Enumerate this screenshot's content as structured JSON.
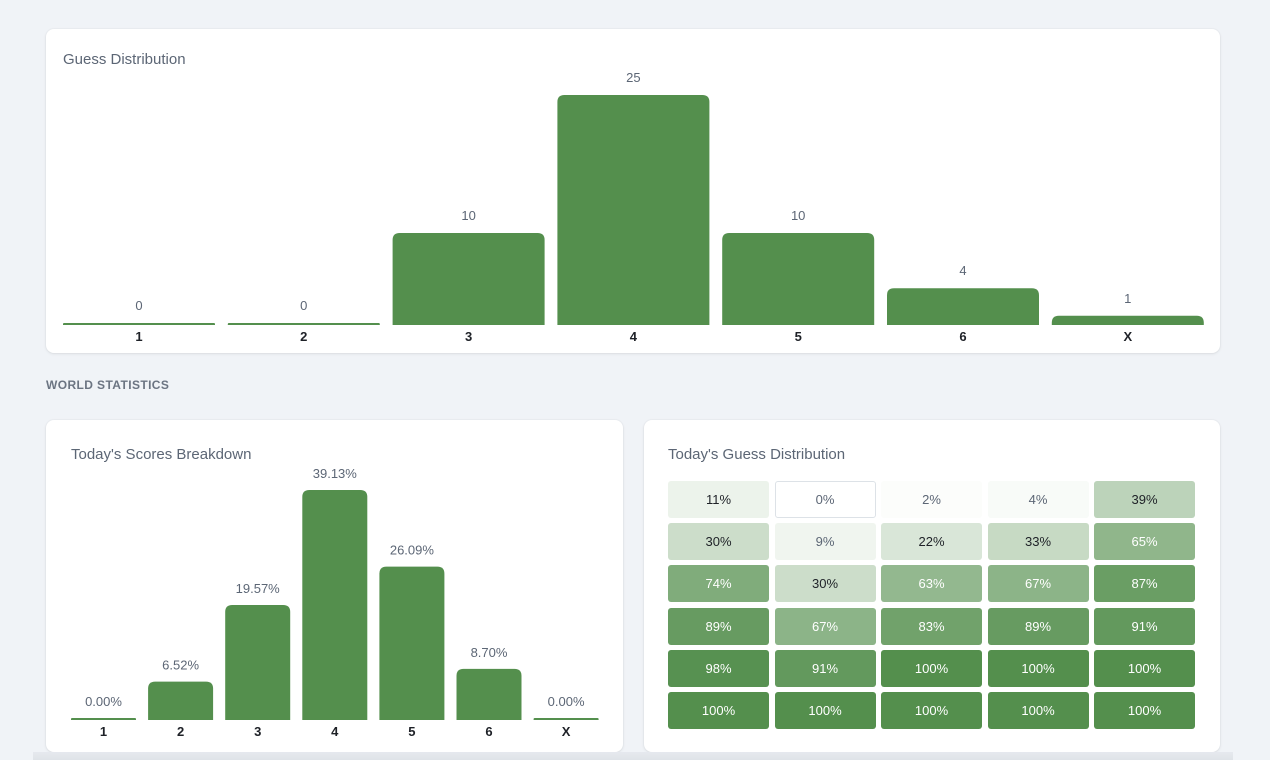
{
  "colors": {
    "bar": "#548f4d",
    "value_label": "#5c6675",
    "axis_label": "#1e2127",
    "heat_text_dark": "#1e2127",
    "heat_text_muted": "#5c6675",
    "heat_text_light": "#ffffff"
  },
  "player_card": {
    "title": "Guess Distribution"
  },
  "section_heading": "WORLD STATISTICS",
  "scores_card": {
    "title": "Today's Scores Breakdown"
  },
  "heatmap_card": {
    "title": "Today's Guess Distribution"
  },
  "chart_data": [
    {
      "type": "bar",
      "title": "Guess Distribution",
      "categories": [
        "1",
        "2",
        "3",
        "4",
        "5",
        "6",
        "X"
      ],
      "values": [
        0,
        0,
        10,
        25,
        10,
        4,
        1
      ],
      "value_labels": [
        "0",
        "0",
        "10",
        "25",
        "10",
        "4",
        "1"
      ],
      "xlabel": "",
      "ylabel": "",
      "ylim": [
        0,
        25
      ],
      "grid": false
    },
    {
      "type": "bar",
      "title": "Today's Scores Breakdown",
      "categories": [
        "1",
        "2",
        "3",
        "4",
        "5",
        "6",
        "X"
      ],
      "values": [
        0,
        6.52,
        19.57,
        39.13,
        26.09,
        8.7,
        0
      ],
      "value_labels": [
        "0.00%",
        "6.52%",
        "19.57%",
        "39.13%",
        "26.09%",
        "8.70%",
        "0.00%"
      ],
      "xlabel": "",
      "ylabel": "",
      "ylim": [
        0,
        39.13
      ],
      "grid": false
    },
    {
      "type": "heatmap",
      "title": "Today's Guess Distribution",
      "rows": [
        [
          11,
          0,
          2,
          4,
          39
        ],
        [
          30,
          9,
          22,
          33,
          65
        ],
        [
          74,
          30,
          63,
          67,
          87
        ],
        [
          89,
          67,
          83,
          89,
          91
        ],
        [
          98,
          91,
          100,
          100,
          100
        ],
        [
          100,
          100,
          100,
          100,
          100
        ]
      ],
      "labels": [
        [
          "11%",
          "0%",
          "2%",
          "4%",
          "39%"
        ],
        [
          "30%",
          "9%",
          "22%",
          "33%",
          "65%"
        ],
        [
          "74%",
          "30%",
          "63%",
          "67%",
          "87%"
        ],
        [
          "89%",
          "67%",
          "83%",
          "89%",
          "91%"
        ],
        [
          "98%",
          "91%",
          "100%",
          "100%",
          "100%"
        ],
        [
          "100%",
          "100%",
          "100%",
          "100%",
          "100%"
        ]
      ],
      "value_unit": "%"
    }
  ]
}
